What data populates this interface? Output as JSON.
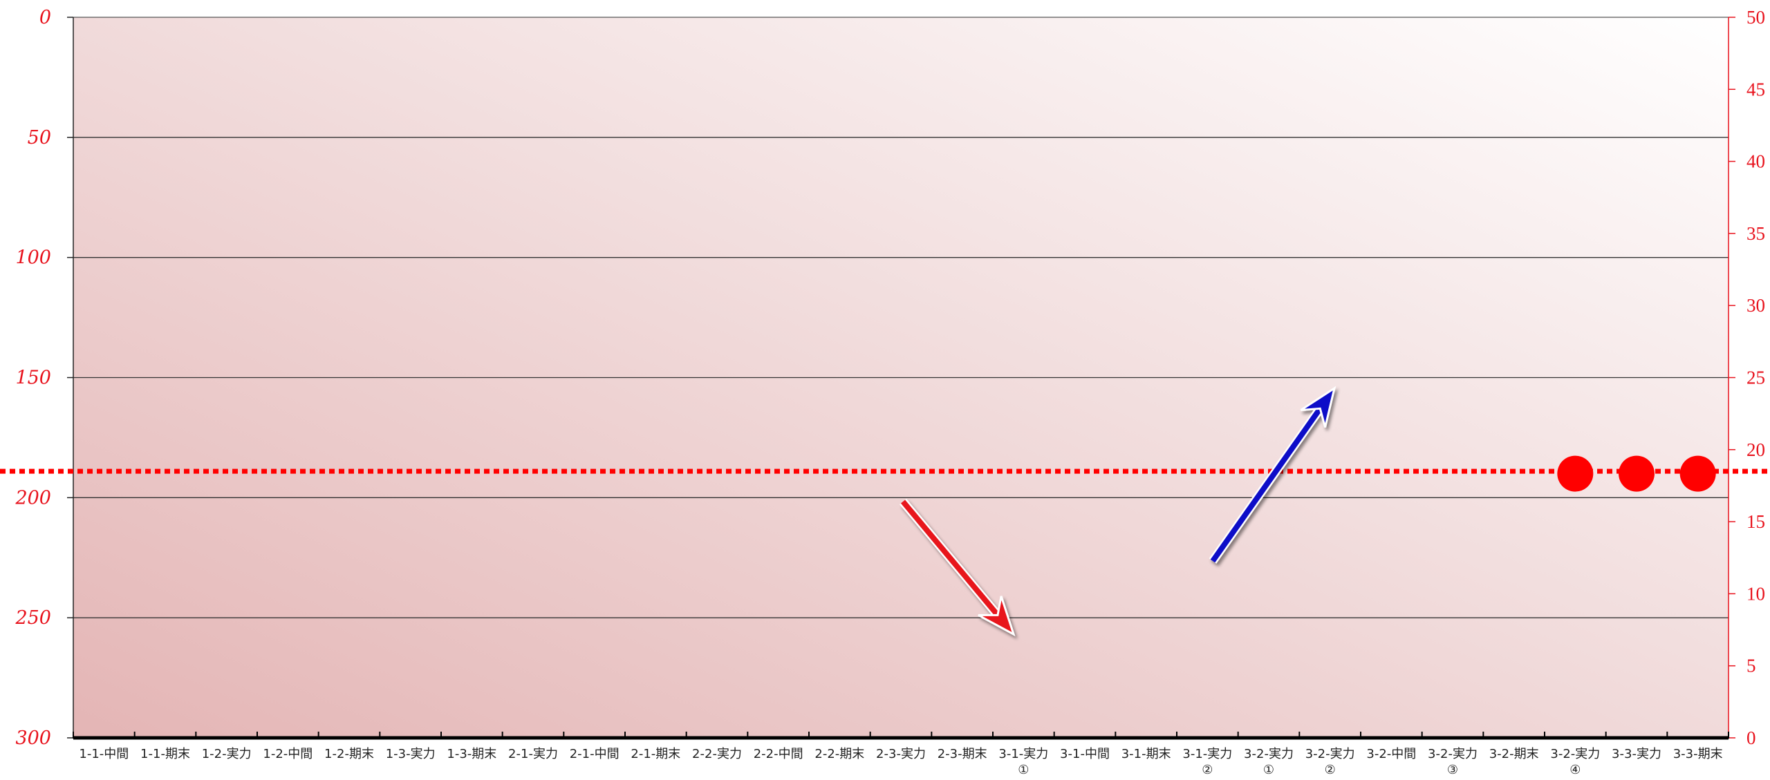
{
  "chart_data": {
    "type": "line",
    "title": "",
    "xlabel": "",
    "ylabel": "",
    "categories": [
      [
        "1-1-中間"
      ],
      [
        "1-1-期末"
      ],
      [
        "1-2-実力"
      ],
      [
        "1-2-中間"
      ],
      [
        "1-2-期末"
      ],
      [
        "1-3-実力"
      ],
      [
        "1-3-期末"
      ],
      [
        "2-1-実力"
      ],
      [
        "2-1-中間"
      ],
      [
        "2-1-期末"
      ],
      [
        "2-2-実力"
      ],
      [
        "2-2-中間"
      ],
      [
        "2-2-期末"
      ],
      [
        "2-3-実力"
      ],
      [
        "2-3-期末"
      ],
      [
        "3-1-実力",
        "①"
      ],
      [
        "3-1-中間"
      ],
      [
        "3-1-期末"
      ],
      [
        "3-1-実力",
        "②"
      ],
      [
        "3-2-実力",
        "①"
      ],
      [
        "3-2-実力",
        "②"
      ],
      [
        "3-2-中間"
      ],
      [
        "3-2-実力",
        "③"
      ],
      [
        "3-2-期末"
      ],
      [
        "3-2-実力",
        "④"
      ],
      [
        "3-3-実力"
      ],
      [
        "3-3-期末"
      ]
    ],
    "y_left": {
      "ticks": [
        "0",
        "50",
        "100",
        "150",
        "200",
        "250",
        "300"
      ],
      "range": [
        0,
        300
      ],
      "reversed": true
    },
    "y_right": {
      "ticks": [
        "50",
        "45",
        "40",
        "35",
        "30",
        "25",
        "20",
        "15",
        "10",
        "5",
        "0"
      ],
      "range": [
        0,
        50
      ]
    },
    "grid": true,
    "series": [
      {
        "style": "dots",
        "axis": "left",
        "color": "#ff0000",
        "values": [
          null,
          null,
          null,
          null,
          null,
          null,
          null,
          null,
          null,
          null,
          null,
          null,
          null,
          null,
          null,
          null,
          null,
          null,
          null,
          null,
          null,
          null,
          null,
          null,
          190,
          190,
          190
        ]
      }
    ],
    "reference_line": {
      "axis": "left",
      "value": 189,
      "style": "dotted",
      "color": "#ff0000"
    },
    "arrows": [
      {
        "color": "#e8121c",
        "direction": "down"
      },
      {
        "color": "#0a0ac8",
        "direction": "up"
      }
    ],
    "colors": {
      "accent": "#ff0000",
      "tick_text": "#e8121c",
      "grid": "#333333",
      "bg_dark": "#e4b5b5",
      "bg_light": "#ffffff"
    }
  }
}
